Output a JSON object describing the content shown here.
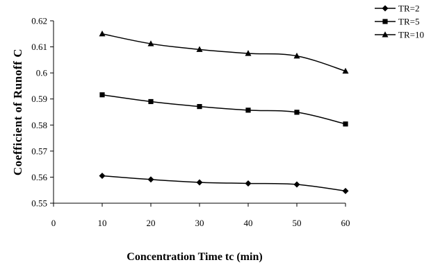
{
  "chart_data": {
    "type": "line",
    "title": "",
    "xlabel": "Concentration Time tc (min)",
    "ylabel": "Coefficient of Runoff C",
    "xlim": [
      0,
      60
    ],
    "ylim": [
      0.55,
      0.62
    ],
    "x_ticks": [
      0,
      10,
      20,
      30,
      40,
      50,
      60
    ],
    "y_ticks": [
      0.55,
      0.56,
      0.57,
      0.58,
      0.59,
      0.6,
      0.61,
      0.62
    ],
    "y_tick_labels": [
      "0.55",
      "0.56",
      "0.57",
      "0.58",
      "0.59",
      "0.6",
      "0.61",
      "0.62"
    ],
    "x_tick_labels": [
      "0",
      "10",
      "20",
      "30",
      "40",
      "50",
      "60"
    ],
    "grid": false,
    "legend_position": "top-right",
    "series": [
      {
        "name": "TR=2",
        "marker": "diamond",
        "color": "#000000",
        "x": [
          10,
          20,
          30,
          40,
          50,
          60
        ],
        "y": [
          0.5605,
          0.5591,
          0.558,
          0.5576,
          0.5572,
          0.5547
        ]
      },
      {
        "name": "TR=5",
        "marker": "square",
        "color": "#000000",
        "x": [
          10,
          20,
          30,
          40,
          50,
          60
        ],
        "y": [
          0.5916,
          0.589,
          0.5871,
          0.5857,
          0.5849,
          0.5804
        ]
      },
      {
        "name": "TR=10",
        "marker": "triangle",
        "color": "#000000",
        "x": [
          10,
          20,
          30,
          40,
          50,
          60
        ],
        "y": [
          0.615,
          0.6112,
          0.609,
          0.6075,
          0.6065,
          0.6007
        ]
      }
    ]
  }
}
